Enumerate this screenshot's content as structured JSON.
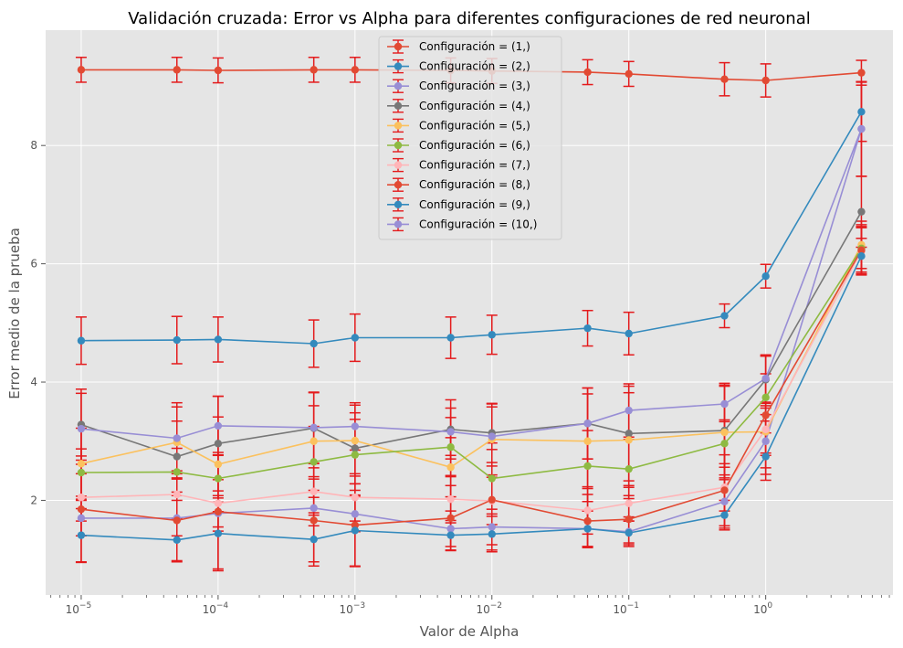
{
  "chart_data": {
    "type": "line",
    "title": "Validación cruzada: Error  vs Alpha para diferentes configuraciones de red neuronal",
    "xlabel": "Valor de Alpha",
    "ylabel": "Error medio de la prueba",
    "xscale": "log",
    "xlim": [
      5.5e-06,
      8.5
    ],
    "ylim": [
      0.4,
      9.95
    ],
    "grid": true,
    "legend_position": "top-center",
    "errorbar_color": "#e41a1c",
    "x": [
      1e-05,
      5e-05,
      0.0001,
      0.0005,
      0.001,
      0.005,
      0.01,
      0.05,
      0.1,
      0.5,
      1,
      5
    ],
    "x_tick_labels": [
      {
        "value": 1e-05,
        "label": "10",
        "exp": "−5"
      },
      {
        "value": 0.0001,
        "label": "10",
        "exp": "−4"
      },
      {
        "value": 0.001,
        "label": "10",
        "exp": "−3"
      },
      {
        "value": 0.01,
        "label": "10",
        "exp": "−2"
      },
      {
        "value": 0.1,
        "label": "10",
        "exp": "−1"
      },
      {
        "value": 1,
        "label": "10",
        "exp": "0"
      }
    ],
    "y_ticks": [
      2,
      4,
      6,
      8
    ],
    "y_tick_labels": [
      "2",
      "4",
      "6",
      "8"
    ],
    "series": [
      {
        "name": "Configuración = (1,)",
        "color": "#E24A33",
        "marker": "circle",
        "values": [
          9.28,
          9.28,
          9.27,
          9.28,
          9.28,
          9.27,
          9.26,
          9.24,
          9.21,
          9.12,
          9.1,
          9.23
        ],
        "errors": [
          0.21,
          0.21,
          0.21,
          0.21,
          0.21,
          0.21,
          0.21,
          0.21,
          0.21,
          0.28,
          0.28,
          0.21
        ]
      },
      {
        "name": "Configuración = (2,)",
        "color": "#348ABD",
        "marker": "circle",
        "values": [
          4.7,
          4.71,
          4.72,
          4.65,
          4.75,
          4.75,
          4.8,
          4.91,
          4.82,
          5.12,
          5.79,
          8.57
        ],
        "errors": [
          0.4,
          0.4,
          0.38,
          0.4,
          0.4,
          0.35,
          0.33,
          0.3,
          0.36,
          0.2,
          0.2,
          0.5
        ]
      },
      {
        "name": "Configuración = (3,)",
        "color": "#988ED5",
        "marker": "circle",
        "values": [
          1.7,
          1.7,
          1.78,
          1.87,
          1.77,
          1.52,
          1.55,
          1.52,
          1.47,
          1.98,
          3.0,
          8.28
        ],
        "errors": [
          0.3,
          0.3,
          0.3,
          0.3,
          0.3,
          0.3,
          0.3,
          0.3,
          0.25,
          0.45,
          0.45,
          0.8
        ]
      },
      {
        "name": "Configuración = (4,)",
        "color": "#777777",
        "marker": "circle",
        "values": [
          3.28,
          2.74,
          2.96,
          3.22,
          2.88,
          3.2,
          3.14,
          3.3,
          3.13,
          3.18,
          4.04,
          6.88
        ],
        "errors": [
          0.6,
          0.6,
          0.8,
          0.6,
          0.6,
          0.5,
          0.5,
          0.6,
          0.8,
          0.8,
          0.4,
          0.6
        ]
      },
      {
        "name": "Configuración = (5,)",
        "color": "#FBC15E",
        "marker": "circle",
        "values": [
          2.62,
          2.98,
          2.61,
          3.0,
          3.01,
          2.56,
          3.03,
          3.0,
          3.02,
          3.15,
          3.16,
          6.32
        ],
        "errors": [
          0.6,
          0.6,
          0.8,
          0.6,
          0.6,
          0.5,
          0.6,
          0.8,
          0.8,
          0.8,
          0.4,
          0.4
        ]
      },
      {
        "name": "Configuración = (6,)",
        "color": "#8EBA42",
        "marker": "circle",
        "values": [
          2.47,
          2.48,
          2.37,
          2.65,
          2.77,
          2.9,
          2.37,
          2.58,
          2.53,
          2.96,
          3.74,
          6.26
        ],
        "errors": [
          0.4,
          0.4,
          0.4,
          0.6,
          0.6,
          0.5,
          0.6,
          0.6,
          0.5,
          0.4,
          0.4,
          0.4
        ]
      },
      {
        "name": "Configuración = (7,)",
        "color": "#FFB5B8",
        "marker": "circle",
        "values": [
          2.05,
          2.1,
          1.95,
          2.15,
          2.05,
          2.02,
          1.99,
          1.83,
          1.95,
          2.22,
          3.2,
          6.21
        ],
        "errors": [
          0.4,
          0.4,
          0.4,
          0.4,
          0.4,
          0.4,
          0.4,
          0.4,
          0.3,
          0.4,
          0.4,
          0.4
        ]
      },
      {
        "name": "Configuración = (8,)",
        "color": "#E24A33",
        "marker": "circle",
        "values": [
          1.85,
          1.66,
          1.81,
          1.66,
          1.58,
          1.7,
          2.01,
          1.65,
          1.68,
          2.17,
          3.44,
          6.23
        ],
        "errors": [
          0.9,
          0.7,
          1.0,
          0.7,
          0.7,
          0.55,
          0.85,
          0.45,
          0.4,
          0.6,
          1.0,
          0.4
        ]
      },
      {
        "name": "Configuración = (9,)",
        "color": "#348ABD",
        "marker": "circle",
        "values": [
          1.41,
          1.33,
          1.44,
          1.34,
          1.49,
          1.41,
          1.43,
          1.52,
          1.45,
          1.75,
          2.74,
          6.13
        ],
        "errors": [
          0.45,
          0.35,
          0.6,
          0.45,
          0.6,
          0.25,
          0.3,
          0.3,
          0.2,
          0.25,
          0.4,
          0.3
        ]
      },
      {
        "name": "Configuración = (10,)",
        "color": "#988ED5",
        "marker": "circle",
        "values": [
          3.21,
          3.05,
          3.26,
          3.23,
          3.25,
          3.16,
          3.08,
          3.3,
          3.52,
          3.63,
          4.06,
          8.28
        ],
        "errors": [
          0.6,
          0.6,
          0.5,
          0.6,
          0.4,
          0.4,
          0.5,
          0.6,
          0.45,
          0.3,
          0.4,
          0.8
        ]
      }
    ]
  }
}
